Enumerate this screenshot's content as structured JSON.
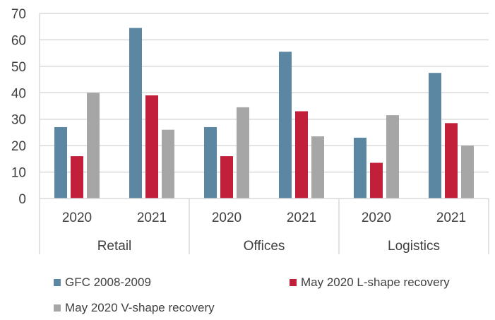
{
  "chart_data": {
    "type": "bar",
    "groups": [
      {
        "label": "Retail",
        "categories": [
          "2020",
          "2021"
        ]
      },
      {
        "label": "Offices",
        "categories": [
          "2020",
          "2021"
        ]
      },
      {
        "label": "Logistics",
        "categories": [
          "2020",
          "2021"
        ]
      }
    ],
    "categories": [
      "Retail 2020",
      "Retail 2021",
      "Offices 2020",
      "Offices 2021",
      "Logistics 2020",
      "Logistics 2021"
    ],
    "series": [
      {
        "name": "GFC 2008-2009",
        "color": "#5b87a3",
        "values": [
          27,
          64.5,
          27,
          55.5,
          23,
          47.5
        ]
      },
      {
        "name": "May 2020 L-shape recovery",
        "color": "#c21f3a",
        "values": [
          16,
          39,
          16,
          33,
          13.5,
          28.5
        ]
      },
      {
        "name": "May 2020 V-shape recovery",
        "color": "#a6a6a6",
        "values": [
          40,
          26,
          34.5,
          23.5,
          31.5,
          20
        ]
      }
    ],
    "yticks": [
      "0",
      "10",
      "20",
      "30",
      "40",
      "50",
      "60",
      "70"
    ],
    "ylim": [
      0,
      70
    ],
    "grid": true,
    "legend_position": "bottom"
  }
}
